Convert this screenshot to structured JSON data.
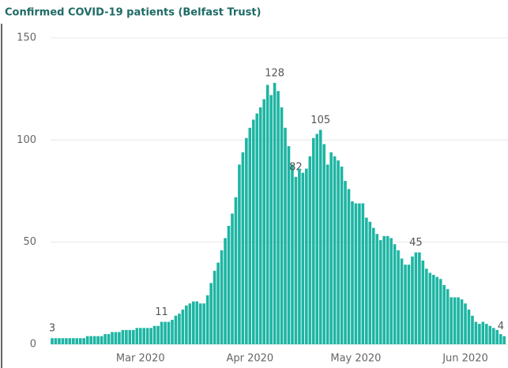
{
  "chart_data": {
    "type": "bar",
    "title": "Confirmed COVID-19 patients (Belfast Trust)",
    "color": "#1db5a3",
    "grid": true,
    "ylim": [
      0,
      150
    ],
    "yticks": [
      0,
      50,
      100,
      150
    ],
    "categories": [
      null,
      null,
      null,
      null,
      null,
      null,
      null,
      null,
      null,
      null,
      null,
      null,
      null,
      null,
      null,
      null,
      null,
      null,
      null,
      null,
      null,
      null,
      null,
      null,
      null,
      "Mar 2020",
      null,
      null,
      null,
      null,
      null,
      null,
      null,
      null,
      null,
      null,
      null,
      null,
      null,
      null,
      null,
      null,
      null,
      null,
      null,
      null,
      null,
      null,
      null,
      null,
      null,
      null,
      null,
      null,
      null,
      null,
      "Apr 2020",
      null,
      null,
      null,
      null,
      null,
      null,
      null,
      null,
      null,
      null,
      null,
      null,
      null,
      null,
      null,
      null,
      null,
      null,
      null,
      null,
      null,
      null,
      null,
      null,
      null,
      null,
      null,
      null,
      null,
      "May 2020",
      null,
      null,
      null,
      null,
      null,
      null,
      null,
      null,
      null,
      null,
      null,
      null,
      null,
      null,
      null,
      null,
      null,
      null,
      null,
      null,
      null,
      null,
      null,
      null,
      null,
      null,
      null,
      null,
      null,
      null,
      "Jun 2020",
      null,
      null,
      null,
      null,
      null,
      null,
      null,
      null,
      null,
      null,
      null
    ],
    "values": [
      3,
      3,
      3,
      3,
      3,
      3,
      3,
      3,
      3,
      3,
      4,
      4,
      4,
      4,
      4,
      5,
      5,
      6,
      6,
      6,
      7,
      7,
      7,
      7,
      8,
      8,
      8,
      8,
      8,
      9,
      9,
      11,
      11,
      11,
      12,
      14,
      15,
      17,
      19,
      20,
      21,
      21,
      20,
      20,
      24,
      30,
      36,
      40,
      46,
      52,
      58,
      64,
      72,
      88,
      94,
      101,
      106,
      110,
      113,
      116,
      120,
      127,
      122,
      128,
      124,
      116,
      106,
      97,
      88,
      82,
      86,
      84,
      86,
      92,
      101,
      103,
      105,
      98,
      88,
      94,
      92,
      90,
      87,
      80,
      76,
      70,
      69,
      69,
      69,
      62,
      60,
      57,
      54,
      51,
      53,
      53,
      52,
      49,
      46,
      42,
      39,
      39,
      43,
      45,
      45,
      41,
      37,
      35,
      34,
      33,
      32,
      29,
      27,
      23,
      23,
      23,
      22,
      20,
      17,
      14,
      11,
      10,
      11,
      10,
      9,
      8,
      7,
      5,
      4
    ],
    "value_labels": [
      3,
      null,
      null,
      null,
      null,
      null,
      null,
      null,
      null,
      null,
      null,
      null,
      null,
      null,
      null,
      null,
      null,
      null,
      null,
      null,
      null,
      null,
      null,
      null,
      null,
      null,
      null,
      null,
      null,
      null,
      null,
      11,
      null,
      null,
      null,
      null,
      null,
      null,
      null,
      null,
      null,
      null,
      null,
      null,
      null,
      null,
      null,
      null,
      null,
      null,
      null,
      null,
      null,
      null,
      null,
      null,
      null,
      null,
      null,
      null,
      null,
      null,
      null,
      128,
      null,
      null,
      null,
      null,
      null,
      82,
      null,
      null,
      null,
      null,
      null,
      null,
      105,
      null,
      null,
      null,
      null,
      null,
      null,
      null,
      null,
      null,
      null,
      null,
      null,
      null,
      null,
      null,
      null,
      null,
      null,
      null,
      null,
      null,
      null,
      null,
      null,
      null,
      null,
      45,
      null,
      null,
      null,
      null,
      null,
      null,
      null,
      null,
      null,
      null,
      null,
      null,
      null,
      null,
      null,
      null,
      null,
      null,
      null,
      null,
      null,
      null,
      null,
      null,
      4
    ]
  }
}
